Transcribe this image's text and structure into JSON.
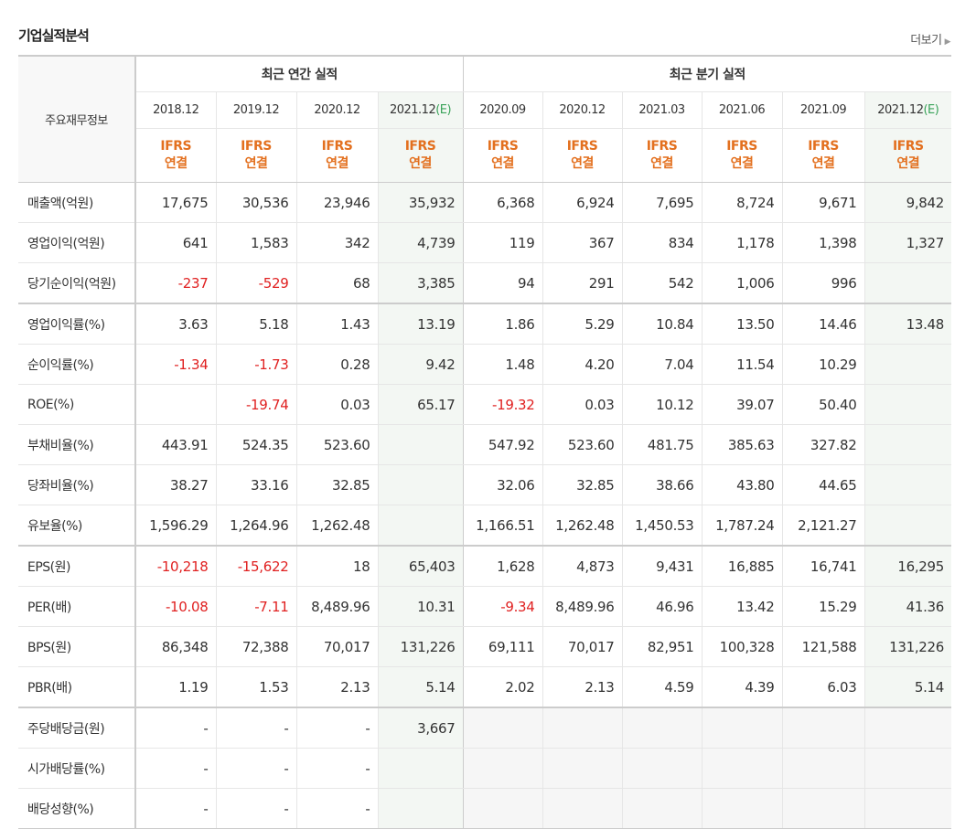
{
  "section": {
    "title": "기업실적분석",
    "more": "더보기"
  },
  "header": {
    "corner": "주요재무정보",
    "annual_title": "최근 연간 실적",
    "quarter_title": "최근 분기 실적",
    "estimate_mark": "(E)",
    "ifrs_top": "IFRS",
    "ifrs_bottom": "연결",
    "annual_periods": [
      "2018.12",
      "2019.12",
      "2020.12",
      "2021.12"
    ],
    "quarter_periods": [
      "2020.09",
      "2020.12",
      "2021.03",
      "2021.06",
      "2021.09",
      "2021.12"
    ]
  },
  "rows": [
    {
      "label": "매출액(억원)",
      "values": [
        "17,675",
        "30,536",
        "23,946",
        "35,932",
        "6,368",
        "6,924",
        "7,695",
        "8,724",
        "9,671",
        "9,842"
      ]
    },
    {
      "label": "영업이익(억원)",
      "values": [
        "641",
        "1,583",
        "342",
        "4,739",
        "119",
        "367",
        "834",
        "1,178",
        "1,398",
        "1,327"
      ]
    },
    {
      "label": "당기순이익(억원)",
      "values": [
        "-237",
        "-529",
        "68",
        "3,385",
        "94",
        "291",
        "542",
        "1,006",
        "996",
        ""
      ]
    },
    {
      "label": "영업이익률(%)",
      "values": [
        "3.63",
        "5.18",
        "1.43",
        "13.19",
        "1.86",
        "5.29",
        "10.84",
        "13.50",
        "14.46",
        "13.48"
      ]
    },
    {
      "label": "순이익률(%)",
      "values": [
        "-1.34",
        "-1.73",
        "0.28",
        "9.42",
        "1.48",
        "4.20",
        "7.04",
        "11.54",
        "10.29",
        ""
      ]
    },
    {
      "label": "ROE(%)",
      "values": [
        "",
        "-19.74",
        "0.03",
        "65.17",
        "-19.32",
        "0.03",
        "10.12",
        "39.07",
        "50.40",
        ""
      ]
    },
    {
      "label": "부채비율(%)",
      "values": [
        "443.91",
        "524.35",
        "523.60",
        "",
        "547.92",
        "523.60",
        "481.75",
        "385.63",
        "327.82",
        ""
      ]
    },
    {
      "label": "당좌비율(%)",
      "values": [
        "38.27",
        "33.16",
        "32.85",
        "",
        "32.06",
        "32.85",
        "38.66",
        "43.80",
        "44.65",
        ""
      ]
    },
    {
      "label": "유보율(%)",
      "values": [
        "1,596.29",
        "1,264.96",
        "1,262.48",
        "",
        "1,166.51",
        "1,262.48",
        "1,450.53",
        "1,787.24",
        "2,121.27",
        ""
      ]
    },
    {
      "label": "EPS(원)",
      "values": [
        "-10,218",
        "-15,622",
        "18",
        "65,403",
        "1,628",
        "4,873",
        "9,431",
        "16,885",
        "16,741",
        "16,295"
      ]
    },
    {
      "label": "PER(배)",
      "values": [
        "-10.08",
        "-7.11",
        "8,489.96",
        "10.31",
        "-9.34",
        "8,489.96",
        "46.96",
        "13.42",
        "15.29",
        "41.36"
      ]
    },
    {
      "label": "BPS(원)",
      "values": [
        "86,348",
        "72,388",
        "70,017",
        "131,226",
        "69,111",
        "70,017",
        "82,951",
        "100,328",
        "121,588",
        "131,226"
      ]
    },
    {
      "label": "PBR(배)",
      "values": [
        "1.19",
        "1.53",
        "2.13",
        "5.14",
        "2.02",
        "2.13",
        "4.59",
        "4.39",
        "6.03",
        "5.14"
      ]
    },
    {
      "label": "주당배당금(원)",
      "values": [
        "-",
        "-",
        "-",
        "3,667",
        "",
        "",
        "",
        "",
        "",
        ""
      ]
    },
    {
      "label": "시가배당률(%)",
      "values": [
        "-",
        "-",
        "-",
        "",
        "",
        "",
        "",
        "",
        "",
        ""
      ]
    },
    {
      "label": "배당성향(%)",
      "values": [
        "-",
        "-",
        "-",
        "",
        "",
        "",
        "",
        "",
        "",
        ""
      ]
    }
  ],
  "colors": {
    "negative": "#e02020",
    "ifrs": "#e3701f",
    "estimate": "#3aa35a",
    "estimate_bg": "#f3f7f3"
  }
}
